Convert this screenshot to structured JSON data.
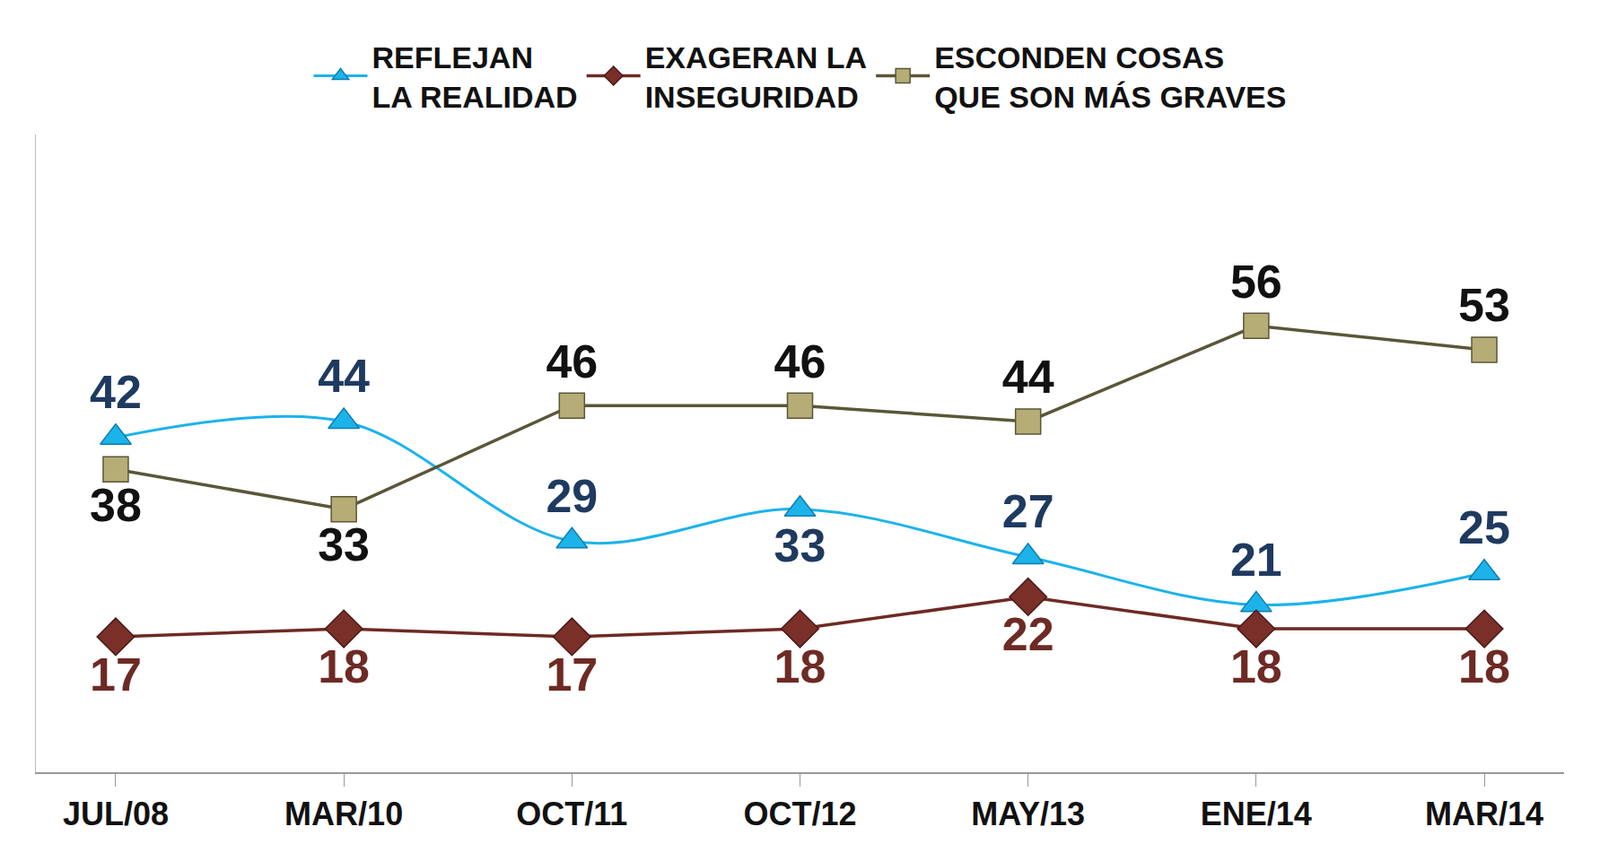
{
  "chart_data": {
    "type": "line",
    "categories": [
      "JUL/08",
      "MAR/10",
      "OCT/11",
      "OCT/12",
      "MAY/13",
      "ENE/14",
      "MAR/14"
    ],
    "series": [
      {
        "name": "REFLEJAN LA REALIDAD",
        "color": "#1cb3ea",
        "marker": "triangle",
        "line_style": "smooth",
        "values": [
          42,
          44,
          29,
          33,
          27,
          21,
          25
        ]
      },
      {
        "name": "EXAGERAN LA INSEGURIDAD",
        "color": "#6e2a24",
        "marker": "diamond",
        "line_style": "solid",
        "values": [
          17,
          18,
          17,
          18,
          22,
          18,
          18
        ]
      },
      {
        "name": "ESCONDEN COSAS QUE SON MÁS GRAVES",
        "color": "#5a5638",
        "marker": "square",
        "line_style": "solid",
        "values": [
          38,
          33,
          46,
          46,
          44,
          56,
          53
        ]
      }
    ],
    "ylim": [
      0,
      80
    ],
    "data_labels": true,
    "tick_labels": "x",
    "grid": false,
    "legend": "top"
  }
}
